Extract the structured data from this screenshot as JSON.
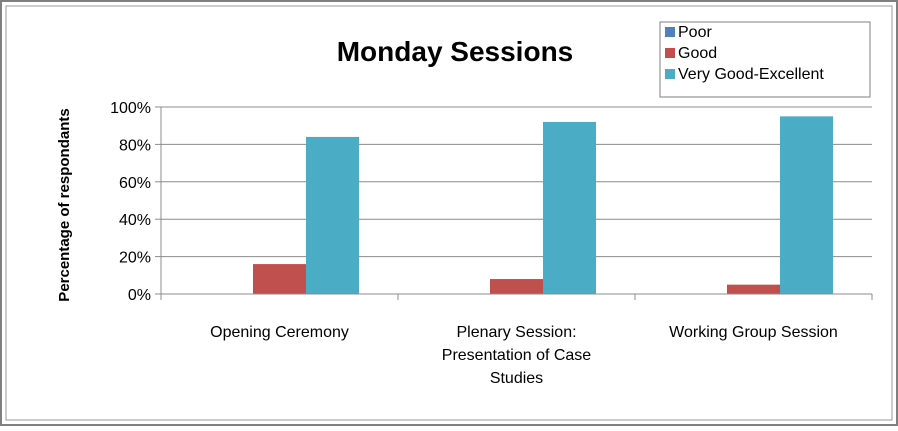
{
  "chart_data": {
    "type": "bar",
    "title": "Monday Sessions",
    "ylabel": "Percentage of respondants",
    "xlabel": "",
    "categories": [
      [
        "Opening Ceremony"
      ],
      [
        "Plenary Session:",
        "Presentation of Case",
        "Studies"
      ],
      [
        "Working Group Session"
      ]
    ],
    "series": [
      {
        "name": "Poor",
        "color": "#4F81BD",
        "values": [
          0,
          0,
          0
        ]
      },
      {
        "name": "Good",
        "color": "#C0504D",
        "values": [
          16,
          8,
          5
        ]
      },
      {
        "name": "Very Good-Excellent",
        "color": "#4BACC6",
        "values": [
          84,
          92,
          95
        ]
      }
    ],
    "ylim": [
      0,
      100
    ],
    "yticks": [
      "0%",
      "20%",
      "40%",
      "60%",
      "80%",
      "100%"
    ],
    "grid": true,
    "legend_position": "top-right"
  }
}
